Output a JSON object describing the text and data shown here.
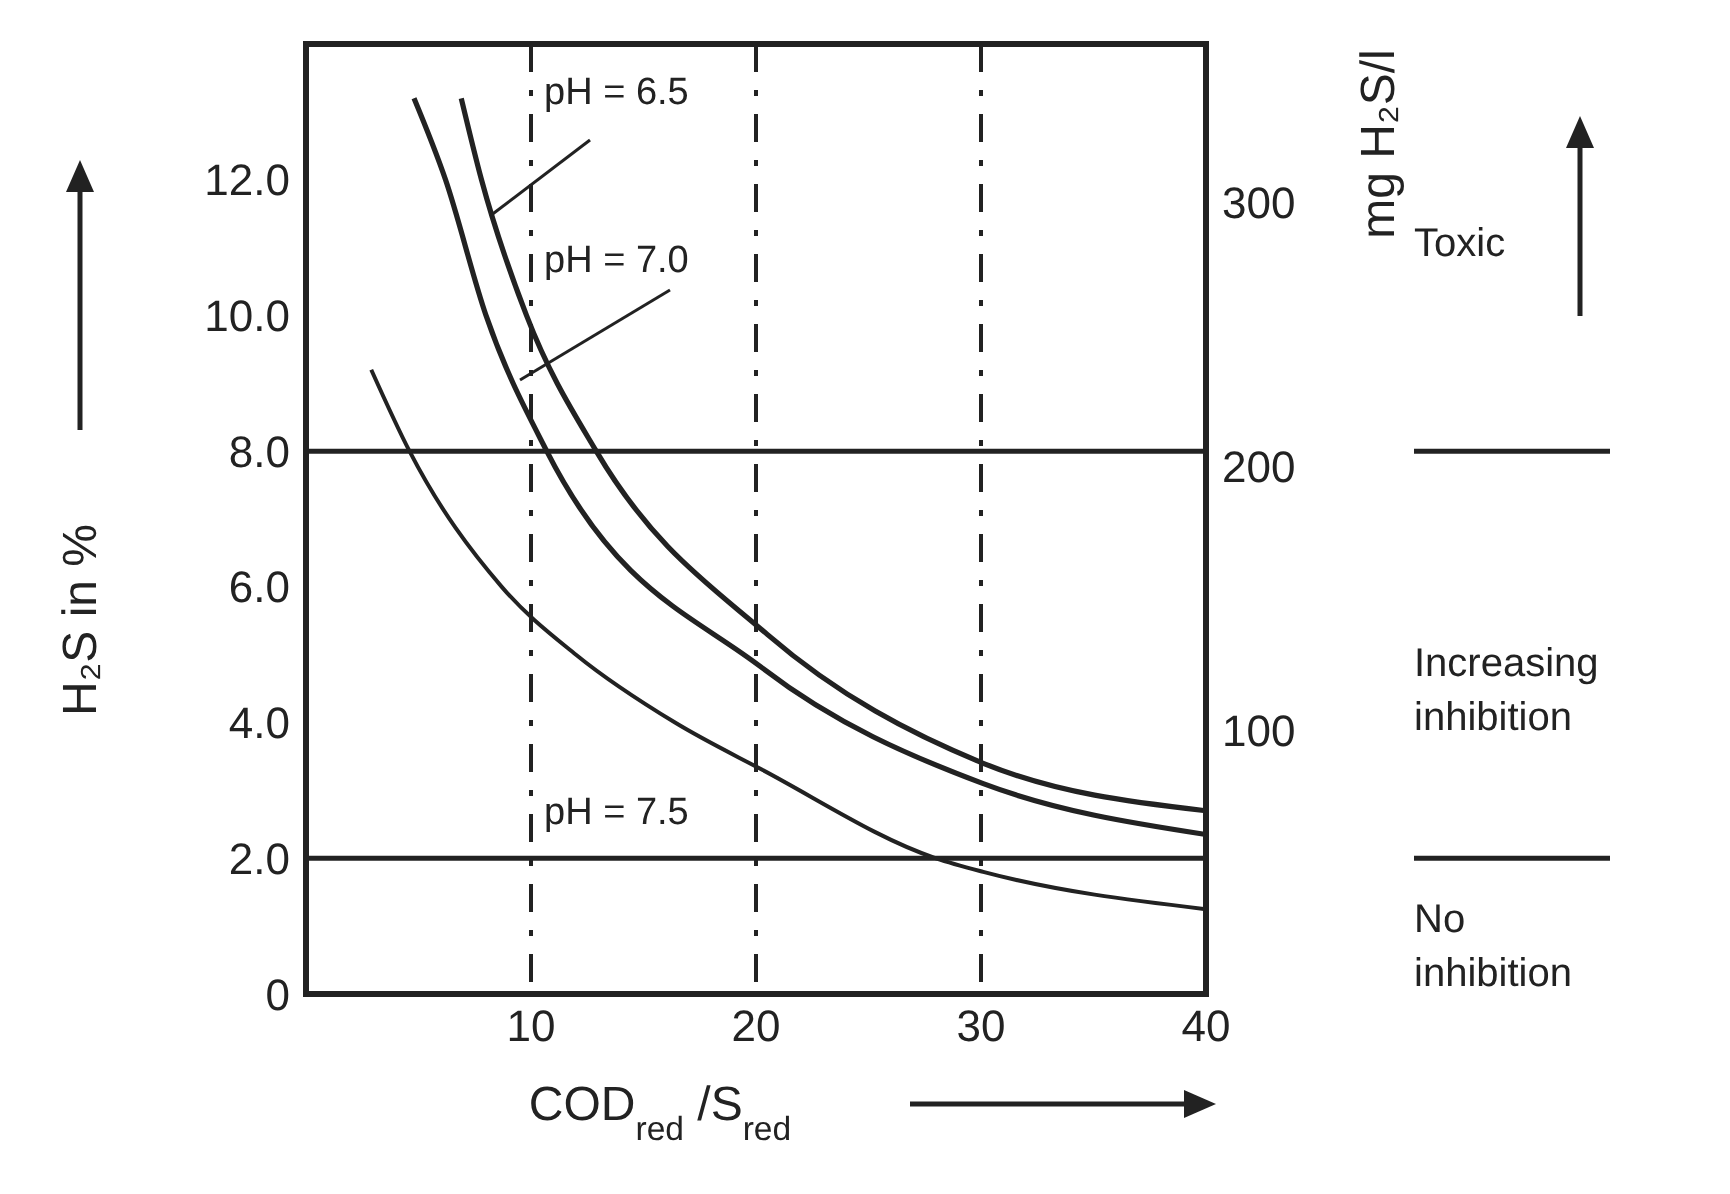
{
  "chart_data": {
    "type": "line",
    "xlabel": "COD$_{red}$ /S$_{red}$",
    "ylabel": "H₂S in %",
    "y2label": "mg H₂S/l",
    "xlim": [
      0,
      40
    ],
    "xticks": [
      10,
      20,
      30,
      40
    ],
    "ylim": [
      0,
      14
    ],
    "yticks": [
      {
        "value": 0,
        "label": "0"
      },
      {
        "value": 2,
        "label": "2.0"
      },
      {
        "value": 4,
        "label": "4.0"
      },
      {
        "value": 6,
        "label": "6.0"
      },
      {
        "value": 8,
        "label": "8.0"
      },
      {
        "value": 10,
        "label": "10.0"
      },
      {
        "value": 12,
        "label": "12.0"
      }
    ],
    "y2lim": [
      0,
      360
    ],
    "y2ticks": [
      100,
      200,
      300
    ],
    "grid": true,
    "series": [
      {
        "name": "pH = 6.5",
        "color": "#222222",
        "x": [
          6.9,
          7.8,
          9.8,
          12.9,
          20.5,
          30.1,
          40
        ],
        "values": [
          13.2,
          12,
          10,
          8,
          5.3,
          3.4,
          2.7
        ]
      },
      {
        "name": "pH = 7.0",
        "color": "#222222",
        "x": [
          4.8,
          6.2,
          8,
          10.7,
          20.3,
          30.1,
          40
        ],
        "values": [
          13.2,
          12,
          10,
          8,
          4.8,
          3.1,
          2.35
        ]
      },
      {
        "name": "pH = 7.5",
        "color": "#222222",
        "x": [
          2.9,
          4.6,
          8.7,
          12,
          16.4,
          20.3,
          28,
          30.1,
          40
        ],
        "values": [
          9.2,
          8,
          6,
          5,
          4,
          3.3,
          2,
          1.8,
          1.25
        ]
      }
    ],
    "ref_lines": [
      {
        "axis": "y",
        "value": 8,
        "color": "#222222"
      },
      {
        "axis": "y",
        "value": 2,
        "color": "#222222"
      }
    ],
    "annotations": [
      "Toxic",
      "Increasing inhibition",
      "No inhibition"
    ]
  }
}
